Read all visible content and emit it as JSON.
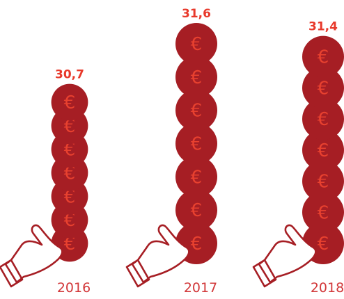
{
  "chart_data": {
    "type": "bar",
    "categories": [
      "2016",
      "2017",
      "2018"
    ],
    "values": [
      30.7,
      31.6,
      31.4
    ],
    "value_labels": [
      "30,7",
      "31,6",
      "31,4"
    ],
    "color": "#a61e24"
  }
}
